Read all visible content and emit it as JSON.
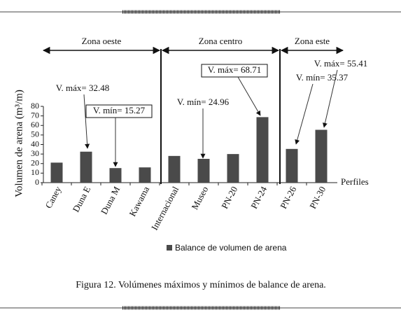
{
  "chart_data": {
    "type": "bar",
    "categories": [
      "Caney",
      "Duna E",
      "Duna M",
      "Kawama",
      "Internacional",
      "Museo",
      "PN-20",
      "PN-24",
      "PN-26",
      "PN-30"
    ],
    "series": [
      {
        "name": "Balance de volumen de arena",
        "color": "#4a4a4a",
        "values": [
          21,
          32.48,
          15.27,
          16,
          28,
          24.96,
          30,
          68.71,
          35.37,
          55.41
        ]
      }
    ],
    "ylim": [
      0,
      80
    ],
    "yticks": [
      0,
      10,
      20,
      30,
      40,
      50,
      60,
      70,
      80
    ],
    "x_label": "Perfiles",
    "y_label": "Volumen de arena  (m³/m)",
    "zones": [
      "Zona oeste",
      "Zona centro",
      "Zona este"
    ],
    "annotations": [
      "V. máx= 32.48",
      "V. mín= 15.27",
      "V. mín= 24.96",
      "V. máx= 68.71",
      "V. mín= 35.37",
      "V. máx= 55.41"
    ],
    "caption": "Figura 12. Volúmenes máximos y mínimos de balance de arena."
  }
}
